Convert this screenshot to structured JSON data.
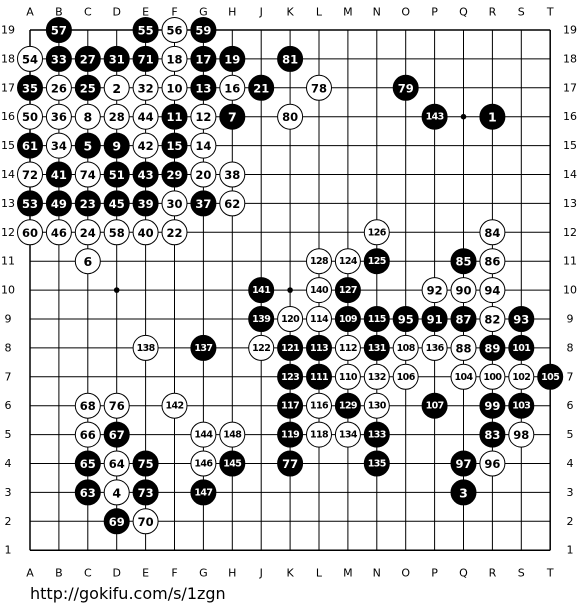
{
  "board": {
    "size": 19,
    "columns": [
      "A",
      "B",
      "C",
      "D",
      "E",
      "F",
      "G",
      "H",
      "J",
      "K",
      "L",
      "M",
      "N",
      "O",
      "P",
      "Q",
      "R",
      "S",
      "T"
    ],
    "rows": [
      "19",
      "18",
      "17",
      "16",
      "15",
      "14",
      "13",
      "12",
      "11",
      "10",
      "9",
      "8",
      "7",
      "6",
      "5",
      "4",
      "3",
      "2",
      "1"
    ],
    "hoshi": [
      "D16",
      "K16",
      "Q16",
      "D10",
      "K10",
      "Q10",
      "D4",
      "K4",
      "Q4"
    ],
    "colors": {
      "line": "#000000",
      "black_stone": "#000000",
      "white_stone": "#ffffff",
      "background": "#ffffff"
    },
    "stones": [
      {
        "pos": "B19",
        "color": "black",
        "label": "57"
      },
      {
        "pos": "E19",
        "color": "black",
        "label": "55"
      },
      {
        "pos": "F19",
        "color": "white",
        "label": "56"
      },
      {
        "pos": "G19",
        "color": "black",
        "label": "59"
      },
      {
        "pos": "A18",
        "color": "white",
        "label": "54"
      },
      {
        "pos": "B18",
        "color": "black",
        "label": "33"
      },
      {
        "pos": "C18",
        "color": "black",
        "label": "27"
      },
      {
        "pos": "D18",
        "color": "black",
        "label": "31"
      },
      {
        "pos": "E18",
        "color": "black",
        "label": "71"
      },
      {
        "pos": "F18",
        "color": "white",
        "label": "18"
      },
      {
        "pos": "G18",
        "color": "black",
        "label": "17"
      },
      {
        "pos": "H18",
        "color": "black",
        "label": "19"
      },
      {
        "pos": "K18",
        "color": "black",
        "label": "81"
      },
      {
        "pos": "A17",
        "color": "black",
        "label": "35"
      },
      {
        "pos": "B17",
        "color": "white",
        "label": "26"
      },
      {
        "pos": "C17",
        "color": "black",
        "label": "25"
      },
      {
        "pos": "D17",
        "color": "white",
        "label": "2"
      },
      {
        "pos": "E17",
        "color": "white",
        "label": "32"
      },
      {
        "pos": "F17",
        "color": "white",
        "label": "10"
      },
      {
        "pos": "G17",
        "color": "black",
        "label": "13"
      },
      {
        "pos": "H17",
        "color": "white",
        "label": "16"
      },
      {
        "pos": "J17",
        "color": "black",
        "label": "21"
      },
      {
        "pos": "L17",
        "color": "white",
        "label": "78"
      },
      {
        "pos": "O17",
        "color": "black",
        "label": "79"
      },
      {
        "pos": "A16",
        "color": "white",
        "label": "50"
      },
      {
        "pos": "B16",
        "color": "white",
        "label": "36"
      },
      {
        "pos": "C16",
        "color": "white",
        "label": "8"
      },
      {
        "pos": "D16",
        "color": "white",
        "label": "28"
      },
      {
        "pos": "E16",
        "color": "white",
        "label": "44"
      },
      {
        "pos": "F16",
        "color": "black",
        "label": "11"
      },
      {
        "pos": "G16",
        "color": "white",
        "label": "12"
      },
      {
        "pos": "H16",
        "color": "black",
        "label": "7"
      },
      {
        "pos": "K16",
        "color": "white",
        "label": "80"
      },
      {
        "pos": "P16",
        "color": "black",
        "label": "143"
      },
      {
        "pos": "R16",
        "color": "black",
        "label": "1"
      },
      {
        "pos": "A15",
        "color": "black",
        "label": "61"
      },
      {
        "pos": "B15",
        "color": "white",
        "label": "34"
      },
      {
        "pos": "C15",
        "color": "black",
        "label": "5"
      },
      {
        "pos": "D15",
        "color": "black",
        "label": "9"
      },
      {
        "pos": "E15",
        "color": "white",
        "label": "42"
      },
      {
        "pos": "F15",
        "color": "black",
        "label": "15"
      },
      {
        "pos": "G15",
        "color": "white",
        "label": "14"
      },
      {
        "pos": "A14",
        "color": "white",
        "label": "72"
      },
      {
        "pos": "B14",
        "color": "black",
        "label": "41"
      },
      {
        "pos": "C14",
        "color": "white",
        "label": "74"
      },
      {
        "pos": "D14",
        "color": "black",
        "label": "51"
      },
      {
        "pos": "E14",
        "color": "black",
        "label": "43"
      },
      {
        "pos": "F14",
        "color": "black",
        "label": "29"
      },
      {
        "pos": "G14",
        "color": "white",
        "label": "20"
      },
      {
        "pos": "H14",
        "color": "white",
        "label": "38"
      },
      {
        "pos": "A13",
        "color": "black",
        "label": "53"
      },
      {
        "pos": "B13",
        "color": "black",
        "label": "49"
      },
      {
        "pos": "C13",
        "color": "black",
        "label": "23"
      },
      {
        "pos": "D13",
        "color": "black",
        "label": "45"
      },
      {
        "pos": "E13",
        "color": "black",
        "label": "39"
      },
      {
        "pos": "F13",
        "color": "white",
        "label": "30"
      },
      {
        "pos": "G13",
        "color": "black",
        "label": "37"
      },
      {
        "pos": "H13",
        "color": "white",
        "label": "62"
      },
      {
        "pos": "A12",
        "color": "white",
        "label": "60"
      },
      {
        "pos": "B12",
        "color": "white",
        "label": "46"
      },
      {
        "pos": "C12",
        "color": "white",
        "label": "24"
      },
      {
        "pos": "D12",
        "color": "white",
        "label": "58"
      },
      {
        "pos": "E12",
        "color": "white",
        "label": "40"
      },
      {
        "pos": "F12",
        "color": "white",
        "label": "22"
      },
      {
        "pos": "N12",
        "color": "white",
        "label": "126"
      },
      {
        "pos": "R12",
        "color": "white",
        "label": "84"
      },
      {
        "pos": "C11",
        "color": "white",
        "label": "6"
      },
      {
        "pos": "L11",
        "color": "white",
        "label": "128"
      },
      {
        "pos": "M11",
        "color": "white",
        "label": "124"
      },
      {
        "pos": "N11",
        "color": "black",
        "label": "125"
      },
      {
        "pos": "Q11",
        "color": "black",
        "label": "85"
      },
      {
        "pos": "R11",
        "color": "white",
        "label": "86"
      },
      {
        "pos": "J10",
        "color": "black",
        "label": "141"
      },
      {
        "pos": "L10",
        "color": "white",
        "label": "140"
      },
      {
        "pos": "M10",
        "color": "black",
        "label": "127"
      },
      {
        "pos": "P10",
        "color": "white",
        "label": "92"
      },
      {
        "pos": "Q10",
        "color": "white",
        "label": "90"
      },
      {
        "pos": "R10",
        "color": "white",
        "label": "94"
      },
      {
        "pos": "J9",
        "color": "black",
        "label": "139"
      },
      {
        "pos": "K9",
        "color": "white",
        "label": "120"
      },
      {
        "pos": "L9",
        "color": "white",
        "label": "114"
      },
      {
        "pos": "M9",
        "color": "black",
        "label": "109"
      },
      {
        "pos": "N9",
        "color": "black",
        "label": "115"
      },
      {
        "pos": "O9",
        "color": "black",
        "label": "95"
      },
      {
        "pos": "P9",
        "color": "black",
        "label": "91"
      },
      {
        "pos": "Q9",
        "color": "black",
        "label": "87"
      },
      {
        "pos": "R9",
        "color": "white",
        "label": "82"
      },
      {
        "pos": "S9",
        "color": "black",
        "label": "93"
      },
      {
        "pos": "E8",
        "color": "white",
        "label": "138"
      },
      {
        "pos": "G8",
        "color": "black",
        "label": "137"
      },
      {
        "pos": "J8",
        "color": "white",
        "label": "122"
      },
      {
        "pos": "K8",
        "color": "black",
        "label": "121"
      },
      {
        "pos": "L8",
        "color": "black",
        "label": "113"
      },
      {
        "pos": "M8",
        "color": "white",
        "label": "112"
      },
      {
        "pos": "N8",
        "color": "black",
        "label": "131"
      },
      {
        "pos": "O8",
        "color": "white",
        "label": "108"
      },
      {
        "pos": "P8",
        "color": "white",
        "label": "136"
      },
      {
        "pos": "Q8",
        "color": "white",
        "label": "88"
      },
      {
        "pos": "R8",
        "color": "black",
        "label": "89"
      },
      {
        "pos": "S8",
        "color": "black",
        "label": "101"
      },
      {
        "pos": "K7",
        "color": "black",
        "label": "123"
      },
      {
        "pos": "L7",
        "color": "black",
        "label": "111"
      },
      {
        "pos": "M7",
        "color": "white",
        "label": "110"
      },
      {
        "pos": "N7",
        "color": "white",
        "label": "132"
      },
      {
        "pos": "O7",
        "color": "white",
        "label": "106"
      },
      {
        "pos": "Q7",
        "color": "white",
        "label": "104"
      },
      {
        "pos": "R7",
        "color": "white",
        "label": "100"
      },
      {
        "pos": "S7",
        "color": "white",
        "label": "102"
      },
      {
        "pos": "T7",
        "color": "black",
        "label": "105"
      },
      {
        "pos": "C6",
        "color": "white",
        "label": "68"
      },
      {
        "pos": "D6",
        "color": "white",
        "label": "76"
      },
      {
        "pos": "F6",
        "color": "white",
        "label": "142"
      },
      {
        "pos": "K6",
        "color": "black",
        "label": "117"
      },
      {
        "pos": "L6",
        "color": "white",
        "label": "116"
      },
      {
        "pos": "M6",
        "color": "black",
        "label": "129"
      },
      {
        "pos": "N6",
        "color": "white",
        "label": "130"
      },
      {
        "pos": "P6",
        "color": "black",
        "label": "107"
      },
      {
        "pos": "R6",
        "color": "black",
        "label": "99"
      },
      {
        "pos": "S6",
        "color": "black",
        "label": "103"
      },
      {
        "pos": "C5",
        "color": "white",
        "label": "66"
      },
      {
        "pos": "D5",
        "color": "black",
        "label": "67"
      },
      {
        "pos": "G5",
        "color": "white",
        "label": "144"
      },
      {
        "pos": "H5",
        "color": "white",
        "label": "148"
      },
      {
        "pos": "K5",
        "color": "black",
        "label": "119"
      },
      {
        "pos": "L5",
        "color": "white",
        "label": "118"
      },
      {
        "pos": "M5",
        "color": "white",
        "label": "134"
      },
      {
        "pos": "N5",
        "color": "black",
        "label": "133"
      },
      {
        "pos": "R5",
        "color": "black",
        "label": "83"
      },
      {
        "pos": "S5",
        "color": "white",
        "label": "98"
      },
      {
        "pos": "C4",
        "color": "black",
        "label": "65"
      },
      {
        "pos": "D4",
        "color": "white",
        "label": "64"
      },
      {
        "pos": "E4",
        "color": "black",
        "label": "75"
      },
      {
        "pos": "G4",
        "color": "white",
        "label": "146"
      },
      {
        "pos": "H4",
        "color": "black",
        "label": "145"
      },
      {
        "pos": "K4",
        "color": "black",
        "label": "77"
      },
      {
        "pos": "N4",
        "color": "black",
        "label": "135"
      },
      {
        "pos": "Q4",
        "color": "black",
        "label": "97"
      },
      {
        "pos": "R4",
        "color": "white",
        "label": "96"
      },
      {
        "pos": "C3",
        "color": "black",
        "label": "63"
      },
      {
        "pos": "D3",
        "color": "white",
        "label": "4"
      },
      {
        "pos": "E3",
        "color": "black",
        "label": "73"
      },
      {
        "pos": "G3",
        "color": "black",
        "label": "147"
      },
      {
        "pos": "Q3",
        "color": "black",
        "label": "3"
      },
      {
        "pos": "D2",
        "color": "black",
        "label": "69"
      },
      {
        "pos": "E2",
        "color": "white",
        "label": "70"
      }
    ]
  },
  "footer": {
    "url": "http://gokifu.com/s/1zgn"
  }
}
